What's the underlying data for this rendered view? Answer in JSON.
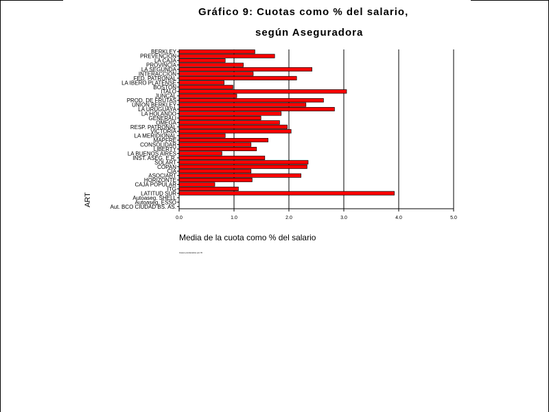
{
  "title_line1": "Gráfico 9: Cuotas como % del salario,",
  "title_line2": "según Aseguradora",
  "note": "Casos ponderados por W",
  "chart_data": {
    "type": "bar",
    "orientation": "horizontal",
    "title": "Gráfico 9: Cuotas como % del salario, según Aseguradora",
    "xlabel": "Media de la cuota como % del salario",
    "ylabel": "ART",
    "xlim": [
      0,
      5
    ],
    "xticks": [
      "0.0",
      "1.0",
      "2.0",
      "3.0",
      "4.0",
      "5.0"
    ],
    "grid": "vertical",
    "bar_color": "#ff0000",
    "categories": [
      "BERKLEY",
      "PREVENCION",
      "LA CAJA",
      "PROVINCIA",
      "LA SEGUNDA",
      "INTERACCION",
      "FED. PATRONAL",
      "LA IBERO PLATENSE",
      "BOSTON",
      "ITALO",
      "JUNCAL",
      "PROD. DE FRUTAS",
      "UNION BERKLEY",
      "LA URUGUAYA",
      "LA HOLANDO",
      "GENERALI",
      "OMEGA",
      "RESP. PATRONAL",
      "VICTORIA",
      "LA MERIDIONAL",
      "MAPFRE",
      "CONSOLIDAR",
      "LIBERTY",
      "LA BUENOS AIRES",
      "INST. ASEG. E.R.",
      "SOLART",
      "COPAN",
      "CIA",
      "ASOCIART",
      "HORIZONTE",
      "CAJA POPULAR",
      "ITG",
      "LATITUD SUR",
      "Autoaseg. SHELL",
      "Autoaseg. ESSO",
      "Aut. BCO CIUDAD BS. AS."
    ],
    "values": [
      1.38,
      1.74,
      0.84,
      1.17,
      2.42,
      1.35,
      2.14,
      0.82,
      0.98,
      3.05,
      1.05,
      2.63,
      2.31,
      2.83,
      1.86,
      1.49,
      1.83,
      1.97,
      2.04,
      0.84,
      1.62,
      1.31,
      1.41,
      0.78,
      1.56,
      2.35,
      2.33,
      1.31,
      2.22,
      1.33,
      0.65,
      1.08,
      3.92,
      0,
      0,
      0
    ]
  }
}
